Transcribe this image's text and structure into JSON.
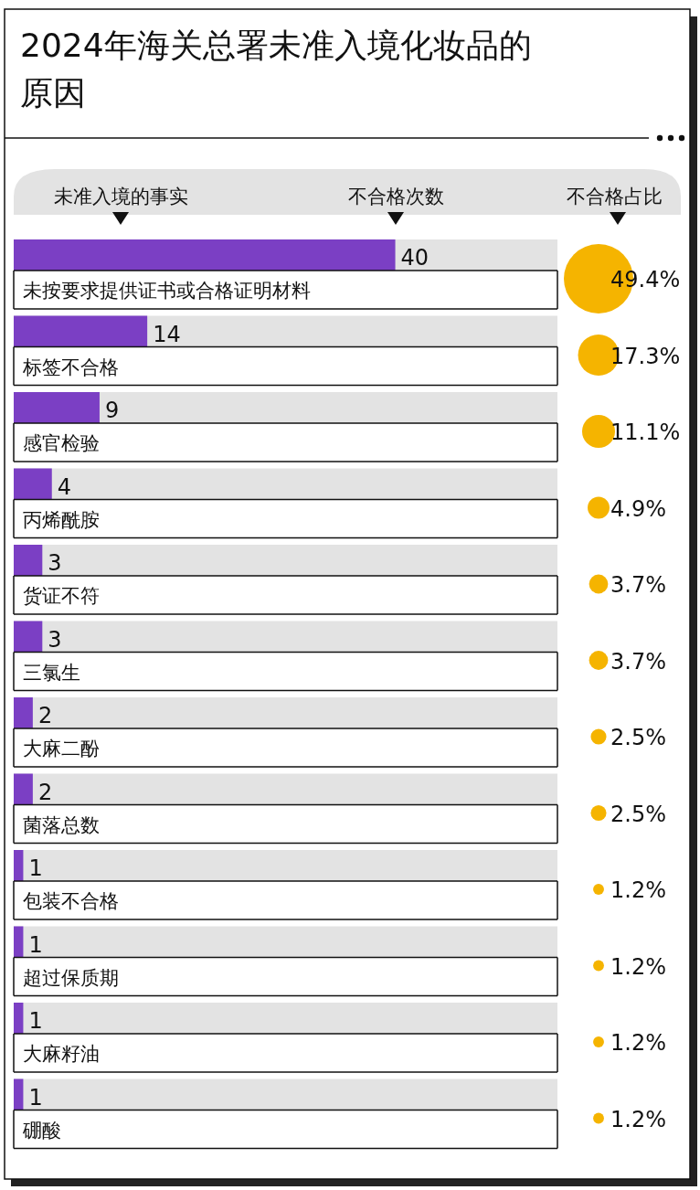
{
  "chart_data": [
    {
      "type": "bar",
      "orientation": "horizontal",
      "title": "2024年海关总署未准入境化妆品的原因",
      "ylabel": "未准入境的事实",
      "xlabel": "不合格次数",
      "categories": [
        "未按要求提供证书或合格证明材料",
        "标签不合格",
        "感官检验",
        "丙烯酰胺",
        "货证不符",
        "三氯生",
        "大麻二酚",
        "菌落总数",
        "包装不合格",
        "超过保质期",
        "大麻籽油",
        "硼酸"
      ],
      "values": [
        40,
        14,
        9,
        4,
        3,
        3,
        2,
        2,
        1,
        1,
        1,
        1
      ],
      "color": "#7b3fc4",
      "xlim": [
        0,
        57
      ],
      "tick_labels": false,
      "data_labels": true
    },
    {
      "type": "other",
      "title": "不合格占比",
      "values": [
        49.4,
        17.3,
        11.1,
        4.9,
        3.7,
        3.7,
        2.5,
        2.5,
        1.2,
        1.2,
        1.2,
        1.2
      ],
      "color": "#f5b400",
      "value_labels": [
        "49.4%",
        "17.3%",
        "11.1%",
        "4.9%",
        "3.7%",
        "3.7%",
        "2.5%",
        "2.5%",
        "1.2%",
        "1.2%",
        "1.2%",
        "1.2%"
      ]
    }
  ]
}
